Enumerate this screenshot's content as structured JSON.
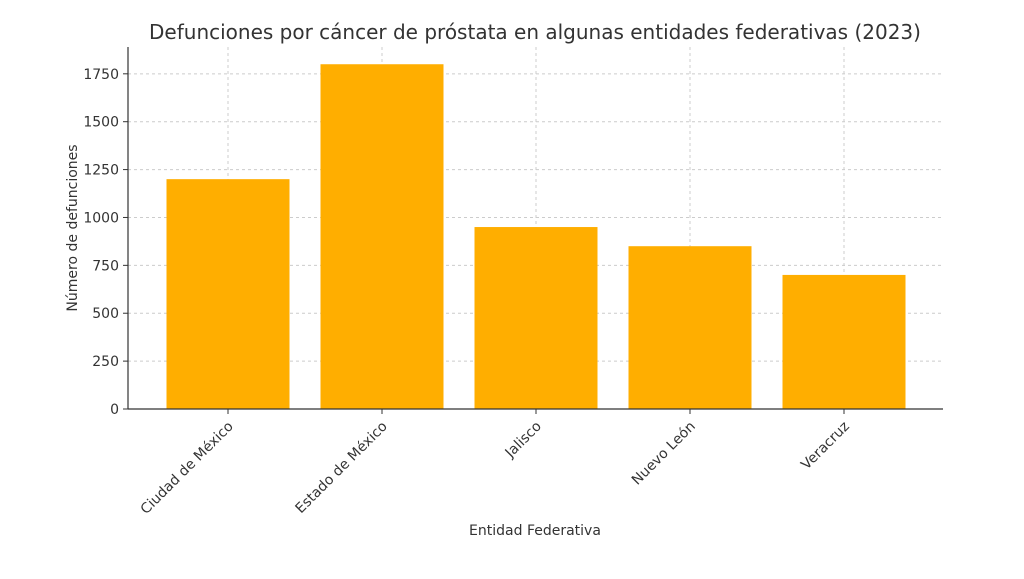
{
  "chart_data": {
    "type": "bar",
    "title": "Defunciones por cáncer de próstata en algunas entidades federativas (2023)",
    "xlabel": "Entidad Federativa",
    "ylabel": "Número de defunciones",
    "categories": [
      "Ciudad de México",
      "Estado de México",
      "Jalisco",
      "Nuevo León",
      "Veracruz"
    ],
    "values": [
      1200,
      1800,
      950,
      850,
      700
    ],
    "ylim": [
      0,
      1890
    ],
    "yticks": [
      0,
      250,
      500,
      750,
      1000,
      1250,
      1500,
      1750
    ],
    "bar_color": "#FFAE00",
    "grid": true,
    "legend": "none"
  }
}
